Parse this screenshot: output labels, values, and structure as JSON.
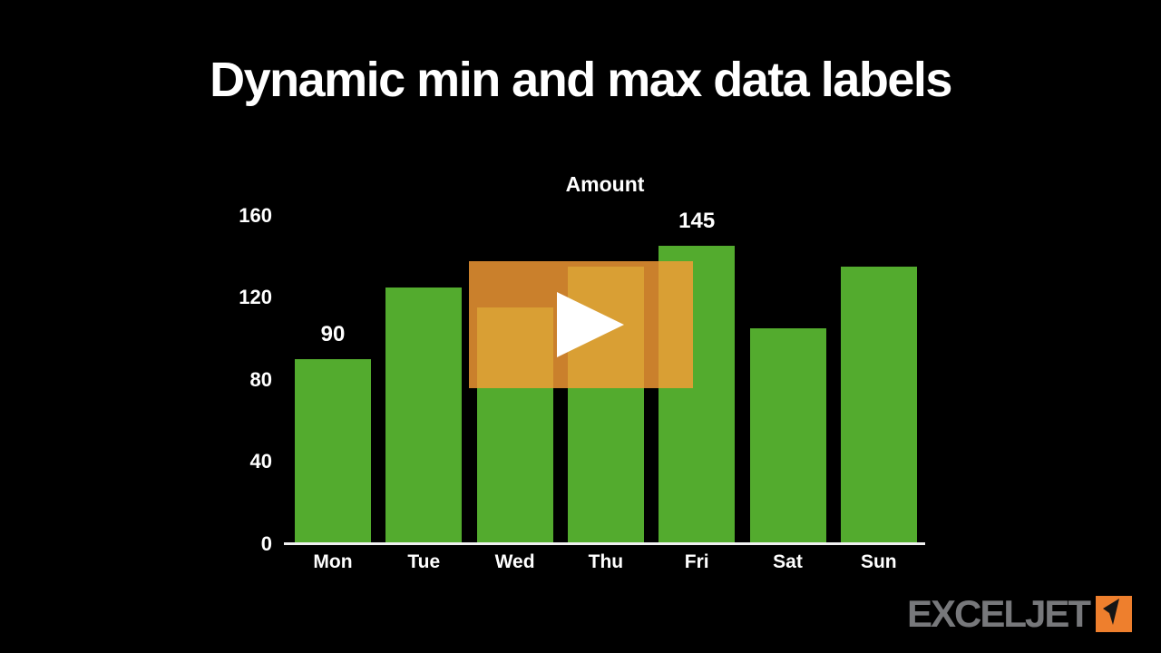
{
  "title": {
    "text": "Dynamic min and max data labels"
  },
  "chart_data": {
    "type": "bar",
    "title": "Amount",
    "categories": [
      "Mon",
      "Tue",
      "Wed",
      "Thu",
      "Fri",
      "Sat",
      "Sun"
    ],
    "values": [
      90,
      125,
      115,
      135,
      145,
      105,
      135
    ],
    "xlabel": "",
    "ylabel": "",
    "yticks": [
      0,
      40,
      80,
      120,
      160
    ],
    "ylim": [
      0,
      160
    ],
    "grid": false,
    "legend": false,
    "data_labels": {
      "mode": "min-and-max-only",
      "min": {
        "category": "Mon",
        "value": 90
      },
      "max": {
        "category": "Fri",
        "value": 145
      }
    }
  },
  "video_overlay": {
    "icon": "play-icon"
  },
  "logo": {
    "text": "EXCELJET",
    "icon": "paper-plane-dart-icon"
  },
  "colors": {
    "background": "#000000",
    "title_text": "#FFFFFF",
    "bar": "#53AB2E",
    "axis_line": "#F0F0F0",
    "tick_text": "#FFFFFF",
    "data_label_text": "#FFFFFF",
    "overlay": "rgba(246,156,54,0.82)",
    "play_icon": "#FFFFFF",
    "logo_text": "#77787B",
    "logo_square": "#EE7F2D",
    "logo_glyph": "#151515"
  }
}
